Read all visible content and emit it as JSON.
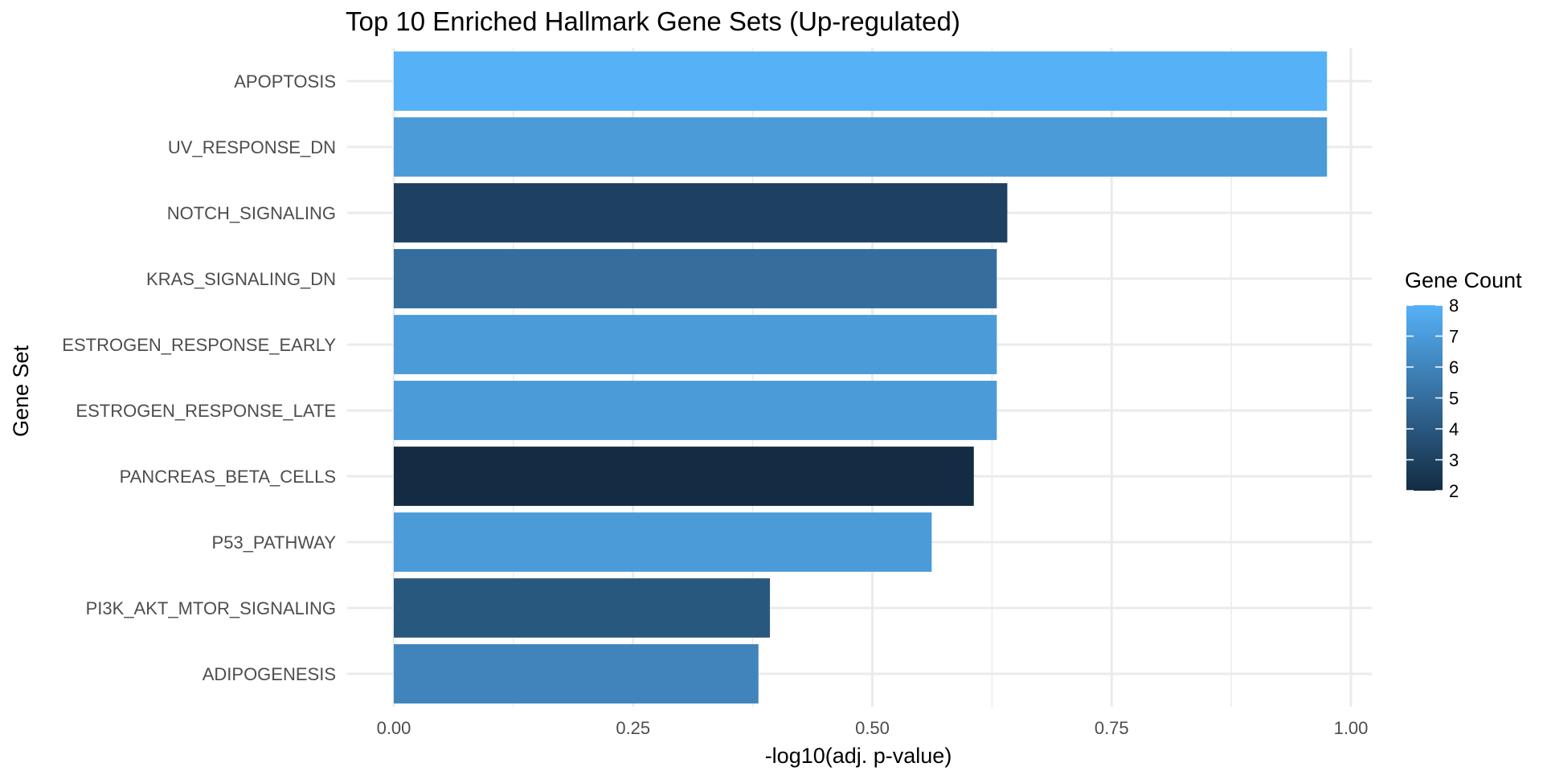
{
  "chart_data": {
    "type": "bar",
    "orientation": "horizontal",
    "title": "Top 10 Enriched Hallmark Gene Sets (Up-regulated)",
    "xlabel": "-log10(adj. p-value)",
    "ylabel": "Gene Set",
    "xlim": [
      0,
      1.0
    ],
    "x_ticks": [
      "0.00",
      "0.25",
      "0.50",
      "0.75",
      "1.00"
    ],
    "grid": true,
    "legend_position": "right",
    "categories": [
      "APOPTOSIS",
      "UV_RESPONSE_DN",
      "NOTCH_SIGNALING",
      "KRAS_SIGNALING_DN",
      "ESTROGEN_RESPONSE_EARLY",
      "ESTROGEN_RESPONSE_LATE",
      "PANCREAS_BETA_CELLS",
      "P53_PATHWAY",
      "PI3K_AKT_MTOR_SIGNALING",
      "ADIPOGENESIS"
    ],
    "values": [
      0.975,
      0.975,
      0.641,
      0.63,
      0.63,
      0.63,
      0.606,
      0.562,
      0.393,
      0.381
    ],
    "gene_count": [
      8,
      7,
      3,
      5,
      7,
      7,
      2,
      7,
      4,
      6
    ],
    "color_scale": {
      "title": "Gene Count",
      "min": 2,
      "max": 8,
      "low_color": "#132b43",
      "high_color": "#56b1f7",
      "ticks": [
        "8",
        "7",
        "6",
        "5",
        "4",
        "3",
        "2"
      ]
    }
  }
}
